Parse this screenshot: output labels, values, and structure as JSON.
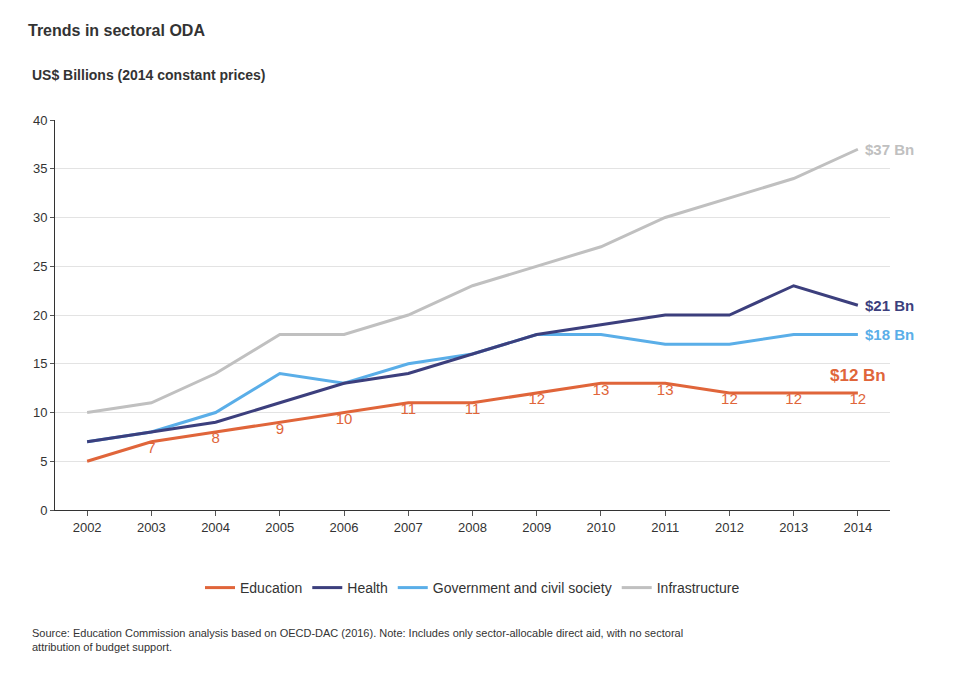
{
  "chart_data": {
    "type": "line",
    "title": "Trends in sectoral ODA",
    "subtitle": "US$ Billions (2014 constant prices)",
    "categories": [
      "2002",
      "2003",
      "2004",
      "2005",
      "2006",
      "2007",
      "2008",
      "2009",
      "2010",
      "2011",
      "2012",
      "2013",
      "2014"
    ],
    "series": [
      {
        "name": "Education",
        "color": "#e0653a",
        "values": [
          5,
          7,
          8,
          9,
          10,
          11,
          11,
          12,
          13,
          13,
          12,
          12,
          12
        ],
        "data_labels": true,
        "value_labels": [
          null,
          "7",
          "8",
          "9",
          "10",
          "11",
          "11",
          "12",
          "13",
          "13",
          "12",
          "12",
          "12"
        ]
      },
      {
        "name": "Health",
        "color": "#3c3f7d",
        "values": [
          7,
          8,
          9,
          11,
          13,
          14,
          16,
          18,
          19,
          20,
          20,
          23,
          21
        ]
      },
      {
        "name": "Government and civil society",
        "color": "#5aaee8",
        "values": [
          7,
          8,
          10,
          14,
          13,
          15,
          16,
          18,
          18,
          17,
          17,
          18,
          18
        ]
      },
      {
        "name": "Infrastructure",
        "color": "#c0c0c0",
        "values": [
          10,
          11,
          14,
          18,
          18,
          20,
          23,
          25,
          27,
          30,
          32,
          34,
          37
        ]
      }
    ],
    "annotations": [
      {
        "text": "$37 Bn",
        "series": "Infrastructure",
        "value": 37
      },
      {
        "text": "$21 Bn",
        "series": "Health",
        "value": 21
      },
      {
        "text": "$18 Bn",
        "series": "Government and civil society",
        "value": 18
      },
      {
        "text": "$12 Bn",
        "series": "Education",
        "value": 12
      }
    ],
    "ylim": [
      0,
      40
    ],
    "yticks": [
      0,
      5,
      10,
      15,
      20,
      25,
      30,
      35,
      40
    ],
    "grid": true,
    "legend": "bottom",
    "source": [
      "Source: Education Commission analysis based on OECD-DAC (2016). Note: Includes only sector-allocable direct aid, with no sectoral",
      "attribution of budget support."
    ]
  }
}
